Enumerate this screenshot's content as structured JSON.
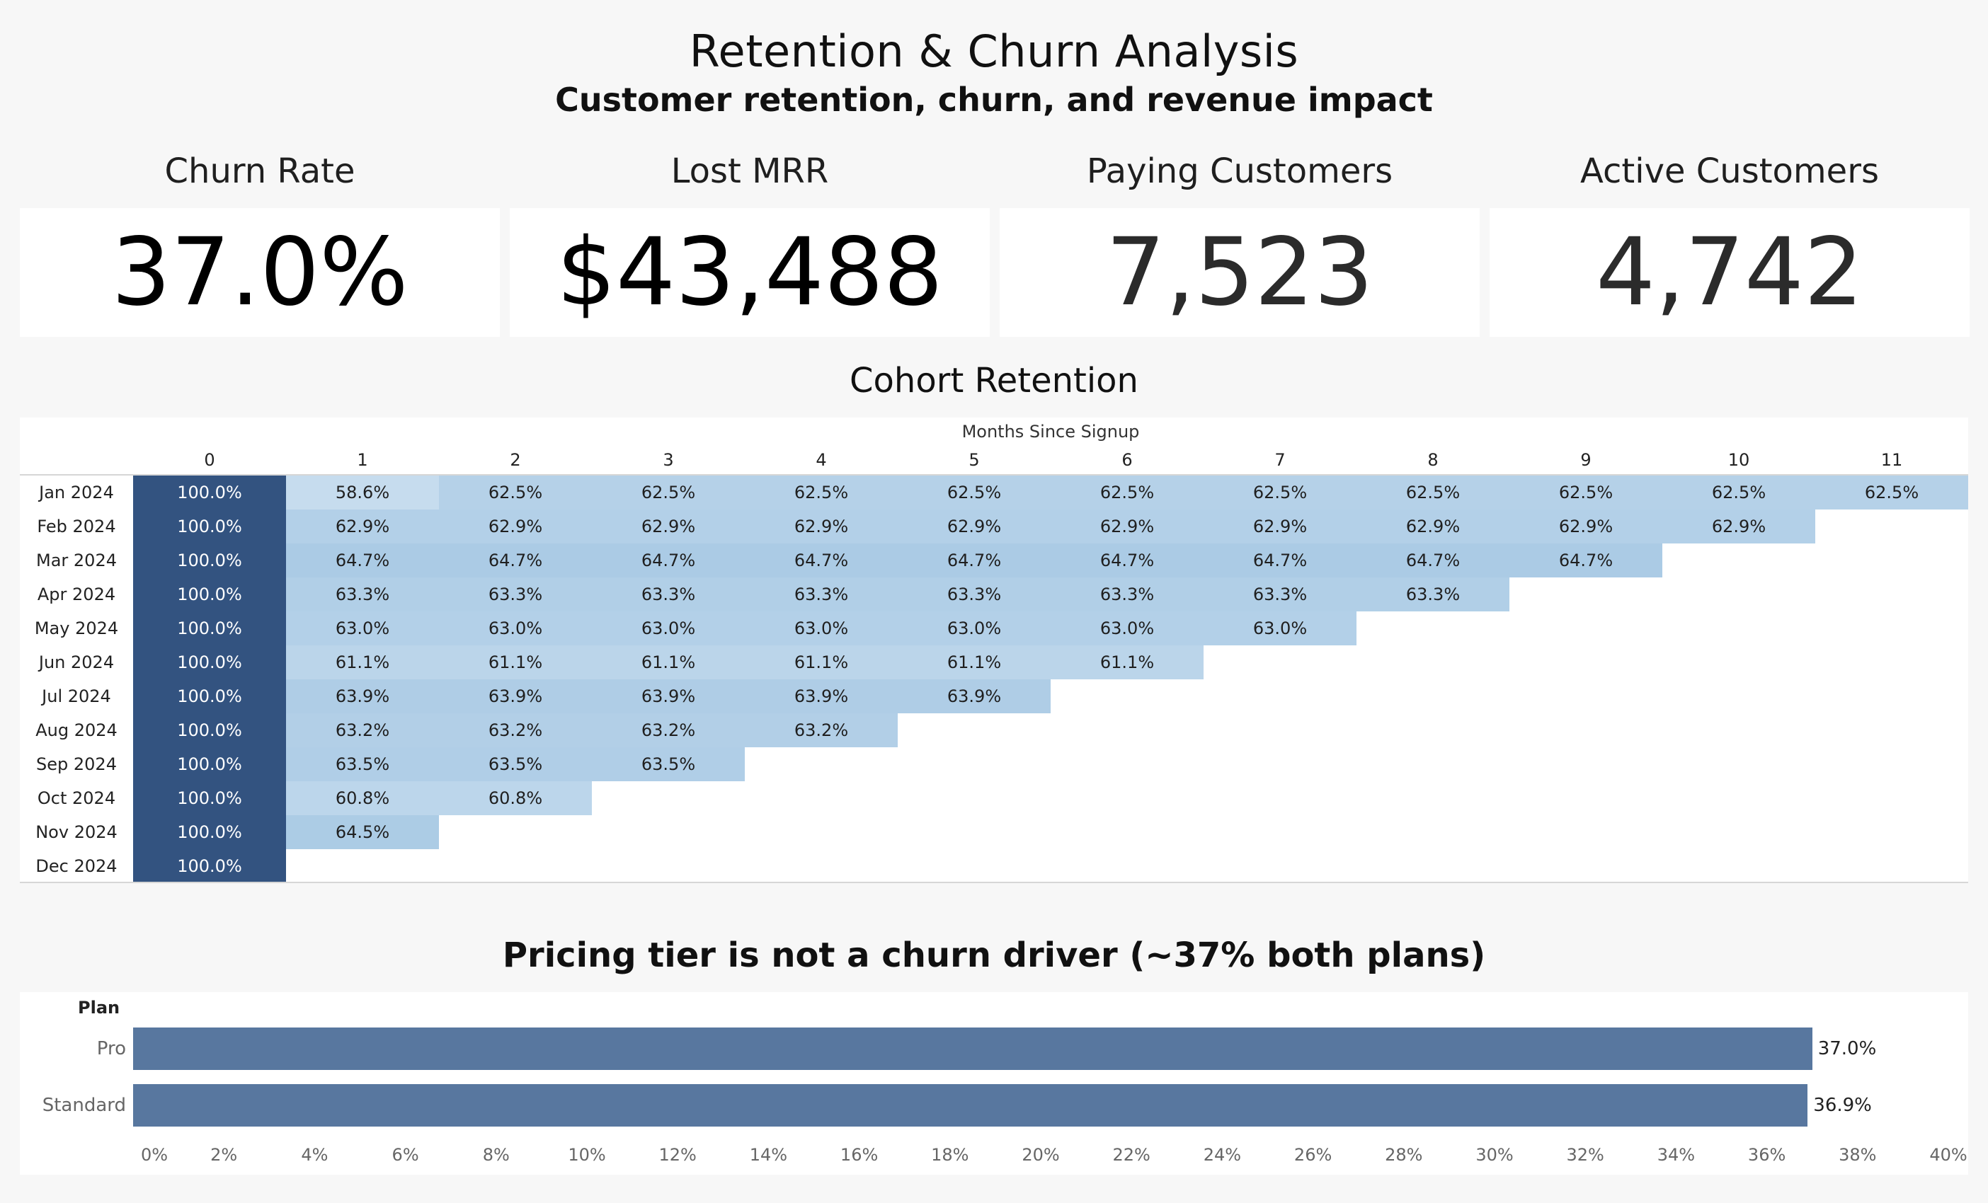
{
  "header": {
    "title": "Retention & Churn Analysis",
    "subtitle": "Customer retention, churn, and revenue impact"
  },
  "kpis": [
    {
      "label": "Churn Rate",
      "value": "37.0%"
    },
    {
      "label": "Lost MRR",
      "value": "$43,488"
    },
    {
      "label": "Paying Customers",
      "value": "7,523"
    },
    {
      "label": "Active Customers",
      "value": "4,742"
    }
  ],
  "colors": {
    "heat_high": "#335380",
    "heat_mid": "#abcbe5",
    "heat_low": "#c6dcee",
    "bar": "#58779f"
  },
  "chart_data": [
    {
      "type": "heatmap",
      "title": "Cohort Retention",
      "xlabel": "Months Since Signup",
      "x": [
        "0",
        "1",
        "2",
        "3",
        "4",
        "5",
        "6",
        "7",
        "8",
        "9",
        "10",
        "11"
      ],
      "y": [
        "Jan 2024",
        "Feb 2024",
        "Mar 2024",
        "Apr 2024",
        "May 2024",
        "Jun 2024",
        "Jul 2024",
        "Aug 2024",
        "Sep 2024",
        "Oct 2024",
        "Nov 2024",
        "Dec 2024"
      ],
      "values": [
        [
          100.0,
          58.6,
          62.5,
          62.5,
          62.5,
          62.5,
          62.5,
          62.5,
          62.5,
          62.5,
          62.5,
          62.5
        ],
        [
          100.0,
          62.9,
          62.9,
          62.9,
          62.9,
          62.9,
          62.9,
          62.9,
          62.9,
          62.9,
          62.9,
          null
        ],
        [
          100.0,
          64.7,
          64.7,
          64.7,
          64.7,
          64.7,
          64.7,
          64.7,
          64.7,
          64.7,
          null,
          null
        ],
        [
          100.0,
          63.3,
          63.3,
          63.3,
          63.3,
          63.3,
          63.3,
          63.3,
          63.3,
          null,
          null,
          null
        ],
        [
          100.0,
          63.0,
          63.0,
          63.0,
          63.0,
          63.0,
          63.0,
          63.0,
          null,
          null,
          null,
          null
        ],
        [
          100.0,
          61.1,
          61.1,
          61.1,
          61.1,
          61.1,
          61.1,
          null,
          null,
          null,
          null,
          null
        ],
        [
          100.0,
          63.9,
          63.9,
          63.9,
          63.9,
          63.9,
          null,
          null,
          null,
          null,
          null,
          null
        ],
        [
          100.0,
          63.2,
          63.2,
          63.2,
          63.2,
          null,
          null,
          null,
          null,
          null,
          null,
          null
        ],
        [
          100.0,
          63.5,
          63.5,
          63.5,
          null,
          null,
          null,
          null,
          null,
          null,
          null,
          null
        ],
        [
          100.0,
          60.8,
          60.8,
          null,
          null,
          null,
          null,
          null,
          null,
          null,
          null,
          null
        ],
        [
          100.0,
          64.5,
          null,
          null,
          null,
          null,
          null,
          null,
          null,
          null,
          null,
          null
        ],
        [
          100.0,
          null,
          null,
          null,
          null,
          null,
          null,
          null,
          null,
          null,
          null,
          null
        ]
      ],
      "value_format": "percent_1dp"
    },
    {
      "type": "bar",
      "orientation": "horizontal",
      "title": "Pricing tier is not a churn driver (~37% both plans)",
      "ylabel": "Plan",
      "categories": [
        "Pro",
        "Standard"
      ],
      "values": [
        37.0,
        36.9
      ],
      "data_labels": [
        "37.0%",
        "36.9%"
      ],
      "xlim": [
        0,
        40
      ],
      "x_ticks": [
        "0%",
        "2%",
        "4%",
        "6%",
        "8%",
        "10%",
        "12%",
        "14%",
        "16%",
        "18%",
        "20%",
        "22%",
        "24%",
        "26%",
        "28%",
        "30%",
        "32%",
        "34%",
        "36%",
        "38%",
        "40%"
      ],
      "grid": false
    }
  ]
}
